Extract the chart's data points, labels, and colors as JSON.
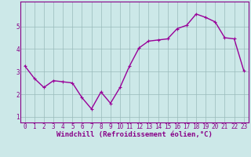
{
  "x": [
    0,
    1,
    2,
    3,
    4,
    5,
    6,
    7,
    8,
    9,
    10,
    11,
    12,
    13,
    14,
    15,
    16,
    17,
    18,
    19,
    20,
    21,
    22,
    23
  ],
  "y": [
    3.25,
    2.7,
    2.3,
    2.6,
    2.55,
    2.5,
    1.85,
    1.35,
    2.1,
    1.6,
    2.3,
    3.25,
    4.05,
    4.35,
    4.4,
    4.45,
    4.9,
    5.05,
    5.55,
    5.4,
    5.2,
    4.5,
    4.45,
    3.05
  ],
  "line_color": "#990099",
  "marker": "+",
  "marker_size": 3,
  "bg_color": "#cce8e8",
  "grid_color": "#99bbbb",
  "xlabel": "Windchill (Refroidissement éolien,°C)",
  "xlim": [
    -0.5,
    23.5
  ],
  "ylim": [
    0.75,
    6.1
  ],
  "yticks": [
    1,
    2,
    3,
    4,
    5
  ],
  "xticks": [
    0,
    1,
    2,
    3,
    4,
    5,
    6,
    7,
    8,
    9,
    10,
    11,
    12,
    13,
    14,
    15,
    16,
    17,
    18,
    19,
    20,
    21,
    22,
    23
  ],
  "xtick_labels": [
    "0",
    "1",
    "2",
    "3",
    "4",
    "5",
    "6",
    "7",
    "8",
    "9",
    "10",
    "11",
    "12",
    "13",
    "14",
    "15",
    "16",
    "17",
    "18",
    "19",
    "20",
    "21",
    "22",
    "23"
  ],
  "label_color": "#880088",
  "tick_color": "#880088",
  "font_size_label": 6.5,
  "font_size_tick": 5.5,
  "line_width": 1.0,
  "marker_color": "#990099",
  "spine_color": "#880088"
}
